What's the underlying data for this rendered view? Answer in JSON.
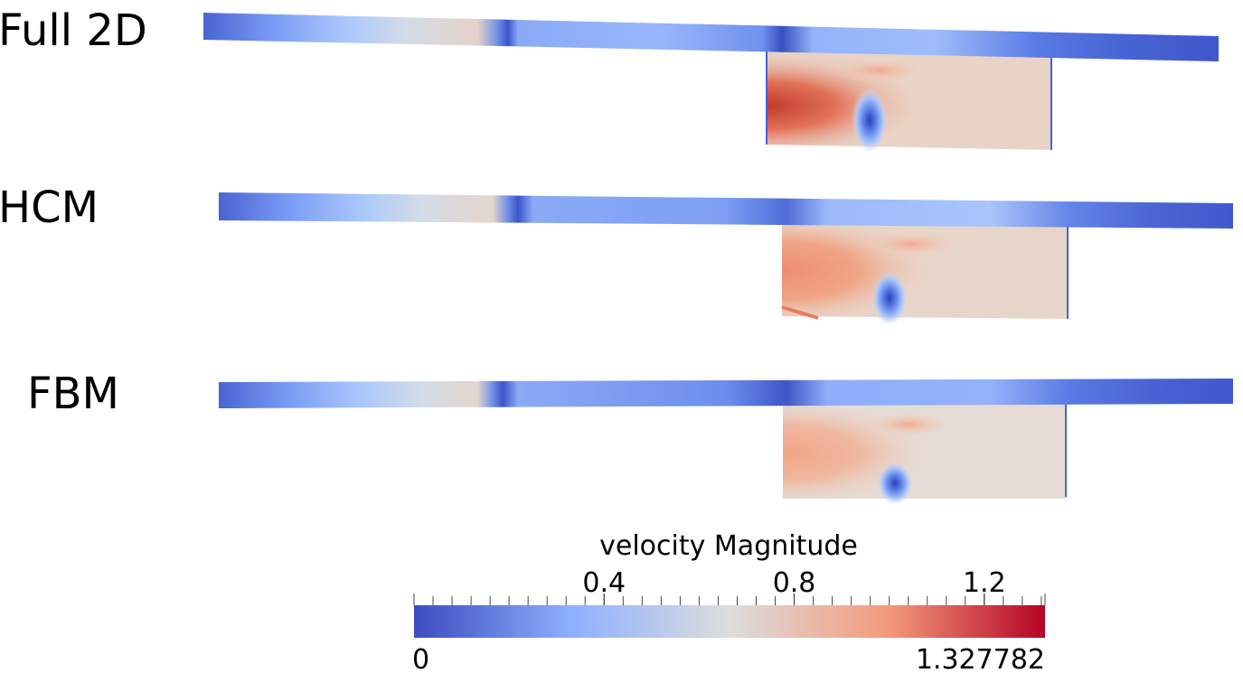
{
  "panels": [
    {
      "label": "Full 2D"
    },
    {
      "label": "HCM"
    },
    {
      "label": "FBM"
    }
  ],
  "colorbar": {
    "title": "velocity Magnitude",
    "min_label": "0",
    "max_label": "1.327782",
    "min": 0,
    "max": 1.327782,
    "ticks": [
      "0.4",
      "0.8",
      "1.2"
    ],
    "tick_values": [
      0.4,
      0.8,
      1.2
    ],
    "colormap": "cool-to-warm",
    "colors": [
      "#3b4cc0",
      "#8db0fe",
      "#dddddd",
      "#f49a7b",
      "#b40426"
    ]
  }
}
